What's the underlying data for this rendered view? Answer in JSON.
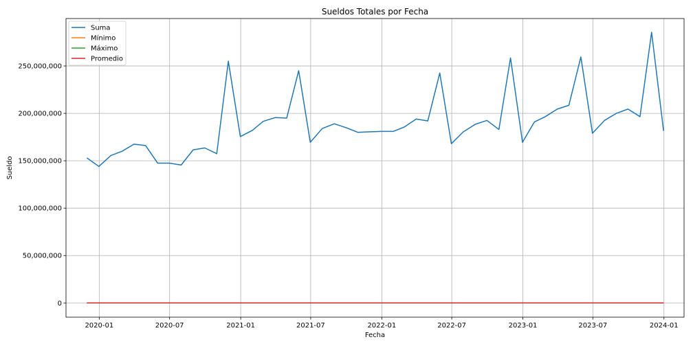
{
  "chart_data": {
    "type": "line",
    "title": "Sueldos Totales por Fecha",
    "xlabel": "Fecha",
    "ylabel": "Sueldo",
    "ylim": [
      -15000000,
      300000000
    ],
    "grid": true,
    "legend_position": "top-left",
    "x": [
      "2019-11-30",
      "2019-12-31",
      "2020-01-31",
      "2020-02-29",
      "2020-03-31",
      "2020-04-30",
      "2020-05-31",
      "2020-06-30",
      "2020-07-31",
      "2020-08-31",
      "2020-09-30",
      "2020-10-31",
      "2020-11-30",
      "2020-12-31",
      "2021-01-31",
      "2021-02-28",
      "2021-03-31",
      "2021-04-30",
      "2021-05-31",
      "2021-06-30",
      "2021-07-31",
      "2021-08-31",
      "2021-09-30",
      "2021-10-31",
      "2021-11-30",
      "2021-12-31",
      "2022-01-31",
      "2022-02-28",
      "2022-03-31",
      "2022-04-30",
      "2022-05-31",
      "2022-06-30",
      "2022-07-31",
      "2022-08-31",
      "2022-09-30",
      "2022-10-31",
      "2022-11-30",
      "2022-12-31",
      "2023-01-31",
      "2023-02-28",
      "2023-03-31",
      "2023-04-30",
      "2023-05-31",
      "2023-06-30",
      "2023-07-31",
      "2023-08-31",
      "2023-09-30",
      "2023-10-31",
      "2023-11-30",
      "2023-12-31"
    ],
    "series": [
      {
        "name": "Suma",
        "color": "#1f77b4",
        "values": [
          153000000,
          144000000,
          155500000,
          160000000,
          167500000,
          166000000,
          147500000,
          147500000,
          145500000,
          161500000,
          163500000,
          157500000,
          255000000,
          175500000,
          182000000,
          191500000,
          195500000,
          195000000,
          245000000,
          169500000,
          184000000,
          189000000,
          185000000,
          180000000,
          180500000,
          181000000,
          181000000,
          185500000,
          194000000,
          192000000,
          242500000,
          168000000,
          180500000,
          188500000,
          192500000,
          183000000,
          258500000,
          169500000,
          191000000,
          196500000,
          204500000,
          208500000,
          259500000,
          179000000,
          192500000,
          200000000,
          204500000,
          196500000,
          285500000,
          181500000
        ]
      },
      {
        "name": "Mínimo",
        "color": "#ff7f0e",
        "values": [
          0,
          0,
          0,
          0,
          0,
          0,
          0,
          0,
          0,
          0,
          0,
          0,
          0,
          0,
          0,
          0,
          0,
          0,
          0,
          0,
          0,
          0,
          0,
          0,
          0,
          0,
          0,
          0,
          0,
          0,
          0,
          0,
          0,
          0,
          0,
          0,
          0,
          0,
          0,
          0,
          0,
          0,
          0,
          0,
          0,
          0,
          0,
          0,
          0,
          0
        ]
      },
      {
        "name": "Máximo",
        "color": "#2ca02c",
        "values": [
          0,
          0,
          0,
          0,
          0,
          0,
          0,
          0,
          0,
          0,
          0,
          0,
          0,
          0,
          0,
          0,
          0,
          0,
          0,
          0,
          0,
          0,
          0,
          0,
          0,
          0,
          0,
          0,
          0,
          0,
          0,
          0,
          0,
          0,
          0,
          0,
          0,
          0,
          0,
          0,
          0,
          0,
          0,
          0,
          0,
          0,
          0,
          0,
          0,
          0
        ]
      },
      {
        "name": "Promedio",
        "color": "#d62728",
        "values": [
          0,
          0,
          0,
          0,
          0,
          0,
          0,
          0,
          0,
          0,
          0,
          0,
          0,
          0,
          0,
          0,
          0,
          0,
          0,
          0,
          0,
          0,
          0,
          0,
          0,
          0,
          0,
          0,
          0,
          0,
          0,
          0,
          0,
          0,
          0,
          0,
          0,
          0,
          0,
          0,
          0,
          0,
          0,
          0,
          0,
          0,
          0,
          0,
          0,
          0
        ]
      }
    ],
    "x_ticks": [
      {
        "date": "2020-01-01",
        "label": "2020-01"
      },
      {
        "date": "2020-07-01",
        "label": "2020-07"
      },
      {
        "date": "2021-01-01",
        "label": "2021-01"
      },
      {
        "date": "2021-07-01",
        "label": "2021-07"
      },
      {
        "date": "2022-01-01",
        "label": "2022-01"
      },
      {
        "date": "2022-07-01",
        "label": "2022-07"
      },
      {
        "date": "2023-01-01",
        "label": "2023-01"
      },
      {
        "date": "2023-07-01",
        "label": "2023-07"
      },
      {
        "date": "2024-01-01",
        "label": "2024-01"
      }
    ],
    "y_ticks": [
      {
        "value": 0,
        "label": "0"
      },
      {
        "value": 50000000,
        "label": "50,000,000"
      },
      {
        "value": 100000000,
        "label": "100,000,000"
      },
      {
        "value": 150000000,
        "label": "150,000,000"
      },
      {
        "value": 200000000,
        "label": "200,000,000"
      },
      {
        "value": 250000000,
        "label": "250,000,000"
      }
    ],
    "xlim": [
      "2019-10-07",
      "2024-02-22"
    ]
  }
}
